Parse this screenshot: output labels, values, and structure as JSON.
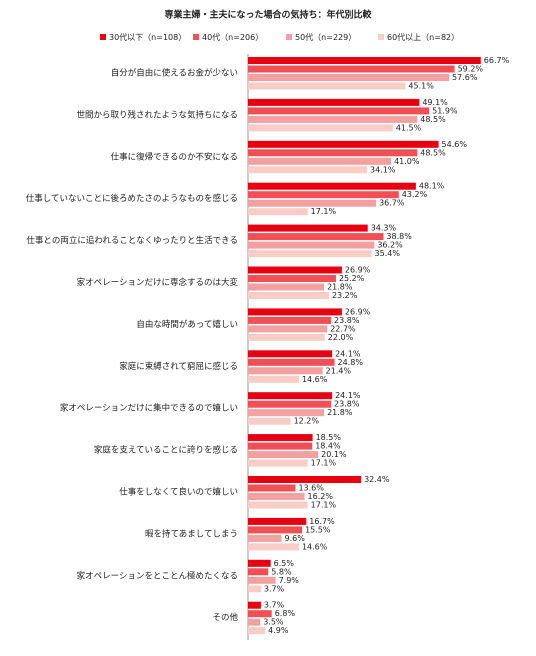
{
  "chart_data": {
    "type": "hbar",
    "title": "専業主婦・主夫になった場合の気持ち：年代別比較",
    "categories": [
      "自分が自由に使えるお金が少ない",
      "世間から取り残されたような気持ちになる",
      "仕事に復帰できるのか不安になる",
      "仕事していないことに後ろめたさのようなものを感じる",
      "仕事との両立に追われることなくゆったりと生活できる",
      "家オペレーションだけに専念するのは大変",
      "自由な時間があって嬉しい",
      "家庭に束縛されて窮屈に感じる",
      "家オペレーションだけに集中できるので嬉しい",
      "家庭を支えていることに誇りを感じる",
      "仕事をしなくて良いので嬉しい",
      "暇を持てあましてしまう",
      "家オペレーションをとことん極めたくなる",
      "その他"
    ],
    "series": [
      {
        "name": "30代以下（n=108）",
        "color": "#e60012",
        "values": [
          66.7,
          49.1,
          54.6,
          48.1,
          34.3,
          26.9,
          26.9,
          24.1,
          24.1,
          18.5,
          32.4,
          16.7,
          6.5,
          3.7
        ],
        "value_labels": [
          "66.7%",
          "49.1%",
          "54.6%",
          "48.1%",
          "34.3%",
          "26.9%",
          "26.9%",
          "24.1%",
          "24.1%",
          "18.5%",
          "32.4%",
          "16.7%",
          "6.5%",
          "3.7%"
        ]
      },
      {
        "name": "40代（n=206）",
        "color": "#ef4f55",
        "values": [
          59.2,
          51.9,
          48.5,
          43.2,
          38.8,
          25.2,
          23.8,
          24.8,
          23.8,
          18.4,
          13.6,
          15.5,
          5.8,
          6.8
        ],
        "value_labels": [
          "59.2%",
          "51.9%",
          "48.5%",
          "43.2%",
          "38.8%",
          "25.2%",
          "23.8%",
          "24.8%",
          "23.8%",
          "18.4%",
          "13.6%",
          "15.5%",
          "5.8%",
          "6.8%"
        ]
      },
      {
        "name": "50代（n=229）",
        "color": "#f3a0a0",
        "values": [
          57.6,
          48.5,
          41.0,
          36.7,
          36.2,
          21.8,
          22.7,
          21.4,
          21.8,
          20.1,
          16.2,
          9.6,
          7.9,
          3.5
        ],
        "value_labels": [
          "57.6%",
          "48.5%",
          "41.0%",
          "36.7%",
          "36.2%",
          "21.8%",
          "22.7%",
          "21.4%",
          "21.8%",
          "20.1%",
          "16.2%",
          "9.6%",
          "7.9%",
          "3.5%"
        ]
      },
      {
        "name": "60代以上（n=82）",
        "color": "#f8cdc6",
        "values": [
          45.1,
          41.5,
          34.1,
          17.1,
          35.4,
          23.2,
          22.0,
          14.6,
          12.2,
          17.1,
          17.1,
          14.6,
          3.7,
          4.9
        ],
        "value_labels": [
          "45.1%",
          "41.5%",
          "34.1%",
          "17.1%",
          "35.4%",
          "23.2%",
          "22.0%",
          "14.6%",
          "12.2%",
          "17.1%",
          "17.1%",
          "14.6%",
          "3.7%",
          "4.9%"
        ]
      }
    ]
  }
}
